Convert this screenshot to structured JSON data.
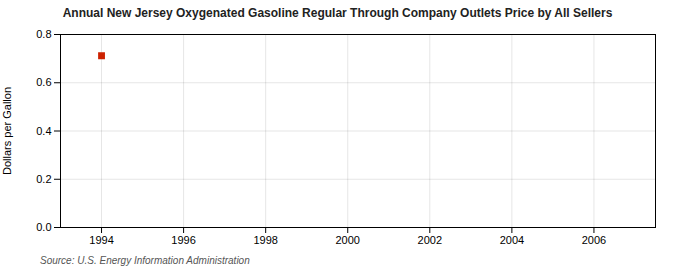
{
  "chart_data": {
    "type": "scatter",
    "title": "Annual New Jersey Oxygenated Gasoline Regular Through Company Outlets Price by All Sellers",
    "ylabel": "Dollars per Gallon",
    "source": "Source: U.S. Energy Information Administration",
    "x": [
      1994
    ],
    "values": [
      0.712
    ],
    "color": "#cc2200",
    "marker": "square",
    "xlim": [
      1993.0,
      2007.5
    ],
    "ylim": [
      0.0,
      0.8
    ],
    "xticks": [
      1994,
      1996,
      1998,
      2000,
      2002,
      2004,
      2006
    ],
    "yticks": [
      {
        "value": 0.0,
        "label": "0.0"
      },
      0.2,
      0.4,
      0.6,
      0.8
    ],
    "grid": true
  }
}
